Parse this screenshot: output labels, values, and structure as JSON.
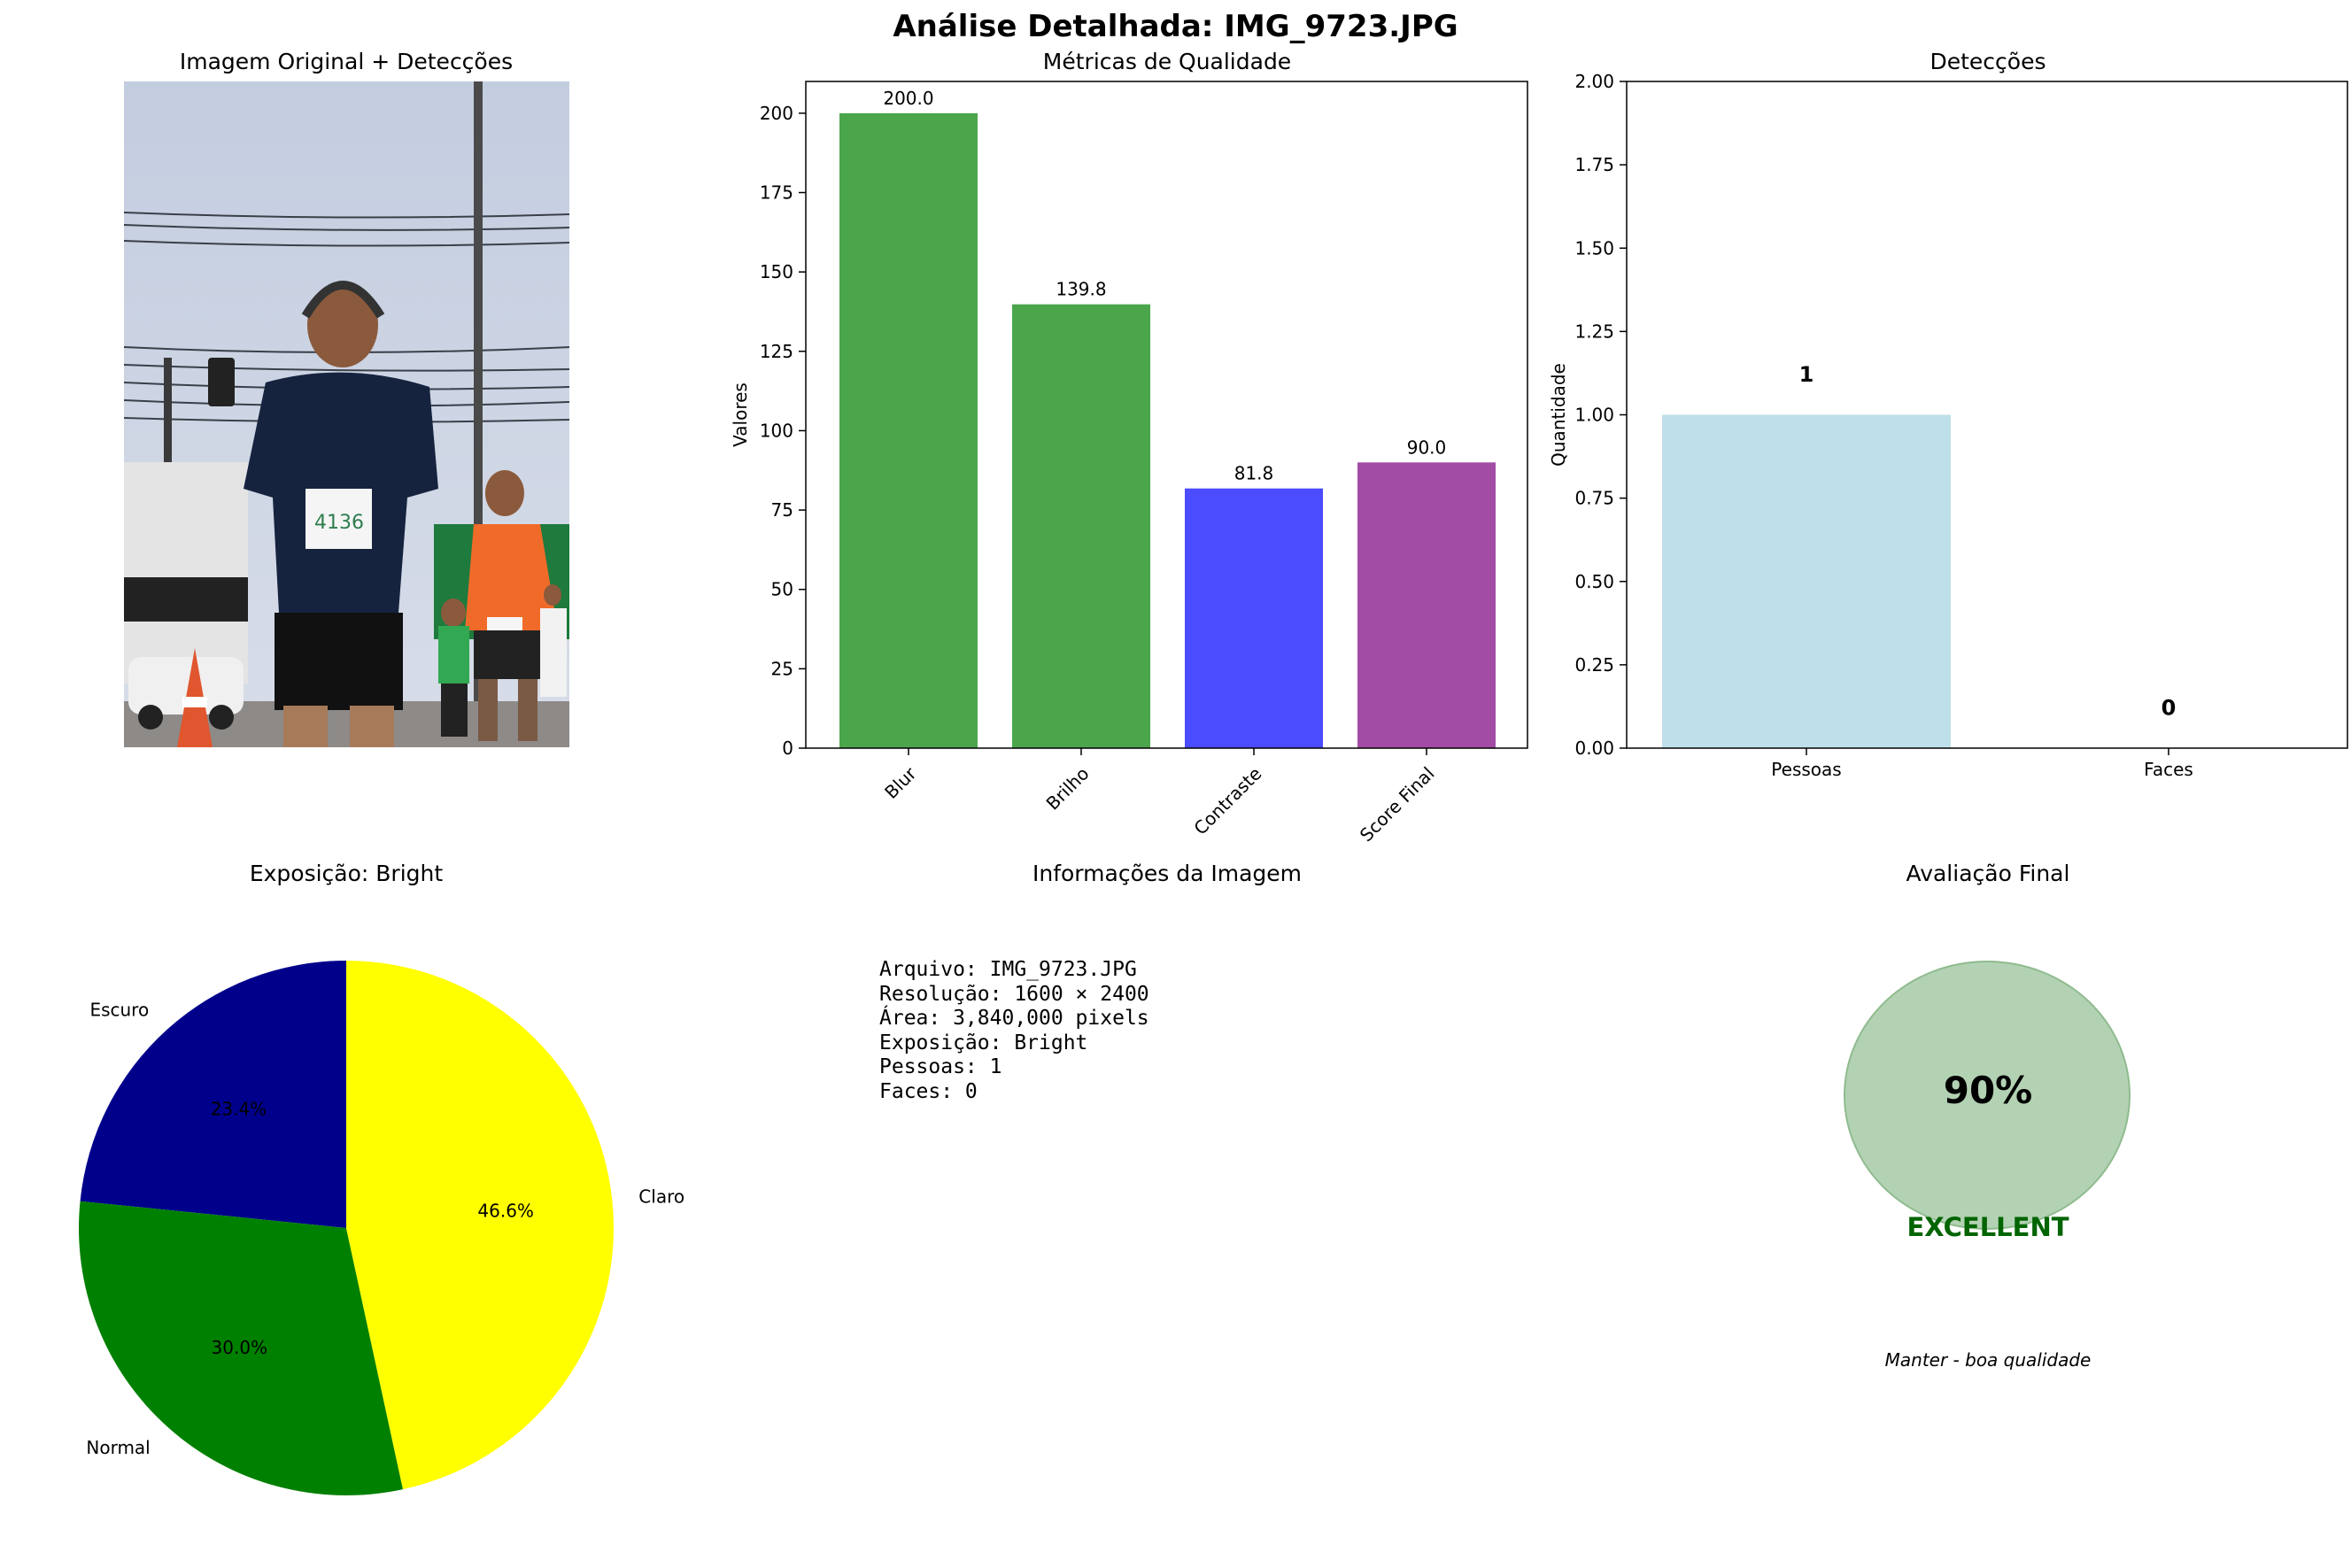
{
  "figure": {
    "suptitle": "Análise Detalhada: IMG_9723.JPG"
  },
  "panels": {
    "image": {
      "title": "Imagem Original + Detecções"
    },
    "metrics": {
      "title": "Métricas de Qualidade"
    },
    "detections": {
      "title": "Detecções"
    },
    "exposure": {
      "title": "Exposição: Bright"
    },
    "info": {
      "title": "Informações da Imagem",
      "lines": [
        "Arquivo: IMG_9723.JPG",
        "Resolução: 1600 × 2400",
        "Área: 3,840,000 pixels",
        "Exposição: Bright",
        "Pessoas: 1",
        "Faces: 0"
      ]
    },
    "final": {
      "title": "Avaliação Final",
      "score": "90%",
      "rating": "EXCELLENT",
      "recommendation": "Manter - boa qualidade",
      "circle_color": "#b3d2b3",
      "rating_color": "#006400"
    }
  },
  "chart_data": [
    {
      "type": "bar",
      "title": "Métricas de Qualidade",
      "ylabel": "Valores",
      "categories": [
        "Blur",
        "Brilho",
        "Contraste",
        "Score Final"
      ],
      "values": [
        200.0,
        139.8,
        81.8,
        90.0
      ],
      "value_labels": [
        "200.0",
        "139.8",
        "81.8",
        "90.0"
      ],
      "colors": [
        "#4ba64b",
        "#4ba64b",
        "#4b4bff",
        "#a34ca6"
      ],
      "ylim": [
        0,
        210
      ],
      "yticks": [
        0,
        25,
        50,
        75,
        100,
        125,
        150,
        175,
        200
      ]
    },
    {
      "type": "bar",
      "title": "Detecções",
      "ylabel": "Quantidade",
      "categories": [
        "Pessoas",
        "Faces"
      ],
      "values": [
        1,
        0
      ],
      "value_labels": [
        "1",
        "0"
      ],
      "colors": [
        "#bfdfea",
        "#ffb6c1"
      ],
      "ylim": [
        0,
        2.0
      ],
      "yticks": [
        "0.00",
        "0.25",
        "0.50",
        "0.75",
        "1.00",
        "1.25",
        "1.50",
        "1.75",
        "2.00"
      ]
    },
    {
      "type": "pie",
      "title": "Exposição: Bright",
      "labels": [
        "Escuro",
        "Normal",
        "Claro"
      ],
      "values": [
        23.4,
        30.0,
        46.6
      ],
      "pct_labels": [
        "23.4%",
        "30.0%",
        "46.6%"
      ],
      "colors": [
        "#00008b",
        "#008000",
        "#ffff00"
      ],
      "startangle": 90
    }
  ]
}
